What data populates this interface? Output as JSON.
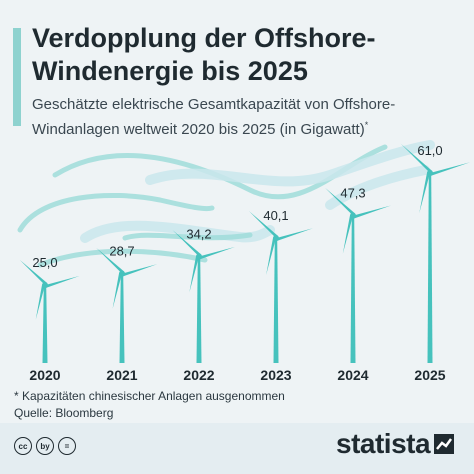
{
  "header": {
    "title": "Verdopplung der Offshore-Windenergie bis 2025",
    "subtitle": "Geschätzte elektrische Gesamtkapazität von Offshore-Windanlagen weltweit 2020 bis 2025 (in Gigawatt)",
    "subtitle_mark": "*"
  },
  "chart_data": {
    "type": "bar",
    "title": "Verdopplung der Offshore-Windenergie bis 2025",
    "categories": [
      "2020",
      "2021",
      "2022",
      "2023",
      "2024",
      "2025"
    ],
    "values": [
      25.0,
      28.7,
      34.2,
      40.1,
      47.3,
      61.0
    ],
    "value_labels": [
      "25,0",
      "28,7",
      "34,2",
      "40,1",
      "47,3",
      "61,0"
    ],
    "ylabel": "Gigawatt",
    "ylim": [
      0,
      61.0
    ],
    "grid": false,
    "mark_style": "wind-turbine"
  },
  "footer": {
    "footnote": "* Kapazitäten chinesischer Anlagen ausgenommen",
    "source": "Quelle: Bloomberg",
    "cc_icons": [
      "cc",
      "by",
      "="
    ],
    "brand": "statista"
  },
  "colors": {
    "background": "#eef3f5",
    "accent": "#8ed2cf",
    "turbine": "#46c2bd",
    "wind": "#9fdcd9",
    "text": "#1f2a30"
  }
}
